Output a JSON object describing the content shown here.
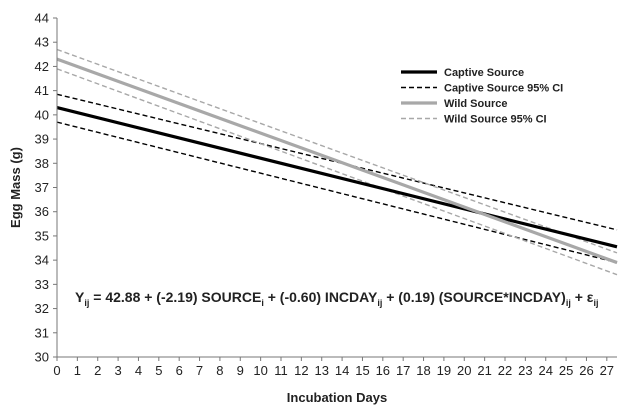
{
  "chart_data": {
    "type": "line",
    "title": "",
    "xlabel": "Incubation Days",
    "ylabel": "Egg Mass (g)",
    "xlim": [
      0,
      27.5
    ],
    "ylim": [
      30,
      44
    ],
    "x_ticks": [
      "0",
      "1",
      "2",
      "3",
      "4",
      "5",
      "6",
      "7",
      "8",
      "9",
      "10",
      "11",
      "12",
      "13",
      "14",
      "15",
      "16",
      "17",
      "18",
      "19",
      "20",
      "21",
      "22",
      "23",
      "24",
      "25",
      "26",
      "27"
    ],
    "y_ticks": [
      "30",
      "31",
      "32",
      "33",
      "34",
      "35",
      "36",
      "37",
      "38",
      "39",
      "40",
      "41",
      "42",
      "43",
      "44"
    ],
    "grid": false,
    "legend_position": "top-right",
    "series": [
      {
        "name": "Captive Source",
        "color": "#000000",
        "style": "solid",
        "x": [
          0,
          27.5
        ],
        "y": [
          40.3,
          34.55
        ]
      },
      {
        "name": "Captive Source 95% CI",
        "color": "#000000",
        "style": "dashed",
        "x": [
          0,
          27.5
        ],
        "y": [
          40.85,
          35.25
        ]
      },
      {
        "name": "",
        "color": "#000000",
        "style": "dashed",
        "x": [
          0,
          27.5
        ],
        "y": [
          39.7,
          33.9
        ]
      },
      {
        "name": "Wild Source",
        "color": "#a8a8a8",
        "style": "solid",
        "x": [
          0,
          27.5
        ],
        "y": [
          42.3,
          33.9
        ]
      },
      {
        "name": "Wild Source 95% CI",
        "color": "#a8a8a8",
        "style": "dashed",
        "x": [
          0,
          27.5
        ],
        "y": [
          42.7,
          34.3
        ]
      },
      {
        "name": "",
        "color": "#a8a8a8",
        "style": "dashed",
        "x": [
          0,
          27.5
        ],
        "y": [
          41.9,
          33.4
        ]
      }
    ],
    "annotation": {
      "parts": [
        {
          "t": "Y",
          "sub": false
        },
        {
          "t": "ij",
          "sub": true
        },
        {
          "t": " = 42.88 + (-2.19) SOURCE",
          "sub": false
        },
        {
          "t": "i",
          "sub": true
        },
        {
          "t": " + (-0.60) INCDAY",
          "sub": false
        },
        {
          "t": "ij",
          "sub": true
        },
        {
          "t": " + (0.19) (SOURCE*INCDAY)",
          "sub": false
        },
        {
          "t": "ij",
          "sub": true
        },
        {
          "t": " + ε",
          "sub": false
        },
        {
          "t": "ij",
          "sub": true
        }
      ]
    }
  }
}
